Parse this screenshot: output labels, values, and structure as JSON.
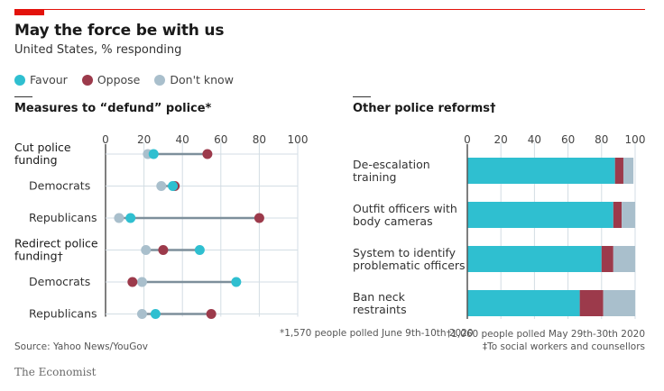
{
  "header": {
    "title": "May the force be with us",
    "subtitle": "United States, % responding"
  },
  "legend": [
    {
      "label": "Favour",
      "color": "#2fbfd0"
    },
    {
      "label": "Oppose",
      "color": "#9c3a4b"
    },
    {
      "label": "Don't know",
      "color": "#a9bfcc"
    }
  ],
  "colors": {
    "favour": "#2fbfd0",
    "oppose": "#9c3a4b",
    "dont_know": "#a9bfcc",
    "connector": "#7d8f9b",
    "grid": "#d3dde4",
    "axis": "#555555",
    "brand_red": "#e3120b"
  },
  "chart_data": [
    {
      "type": "scatter",
      "subtype": "dot-plot",
      "title": "Measures to “defund” police*",
      "xlim": [
        0,
        100
      ],
      "xticks": [
        0,
        20,
        40,
        60,
        80,
        100
      ],
      "grid": true,
      "series_names": [
        "Favour",
        "Oppose",
        "Don't know"
      ],
      "rows": [
        {
          "label": "Cut police funding",
          "group_header": true,
          "favour": 25,
          "oppose": 53,
          "dont_know": 22
        },
        {
          "label": "Democrats",
          "group_header": false,
          "favour": 35,
          "oppose": 36,
          "dont_know": 29
        },
        {
          "label": "Republicans",
          "group_header": false,
          "favour": 13,
          "oppose": 80,
          "dont_know": 7
        },
        {
          "label": "Redirect police funding†",
          "group_header": true,
          "favour": 49,
          "oppose": 30,
          "dont_know": 21
        },
        {
          "label": "Democrats",
          "group_header": false,
          "favour": 68,
          "oppose": 14,
          "dont_know": 19
        },
        {
          "label": "Republicans",
          "group_header": false,
          "favour": 26,
          "oppose": 55,
          "dont_know": 19
        }
      ]
    },
    {
      "type": "bar",
      "subtype": "stacked-horizontal",
      "title": "Other police reforms†",
      "xlim": [
        0,
        100
      ],
      "xticks": [
        0,
        20,
        40,
        60,
        80,
        100
      ],
      "grid": true,
      "categories": [
        "De-escalation training",
        "Outfit officers with body cameras",
        "System to identify problematic officers",
        "Ban neck restraints"
      ],
      "series": [
        {
          "name": "Favour",
          "values": [
            88,
            87,
            80,
            67
          ]
        },
        {
          "name": "Oppose",
          "values": [
            5,
            5,
            7,
            14
          ]
        },
        {
          "name": "Don't know",
          "values": [
            6,
            8,
            13,
            19
          ]
        }
      ]
    }
  ],
  "footer": {
    "source": "Source: Yahoo News/YouGov",
    "brand": "The Economist",
    "note_star": "*1,570 people polled June 9th-10th 2020",
    "note_dagger": "†1,060 people polled May 29th-30th 2020",
    "note_ddagger": "‡To social workers and counsellors"
  }
}
